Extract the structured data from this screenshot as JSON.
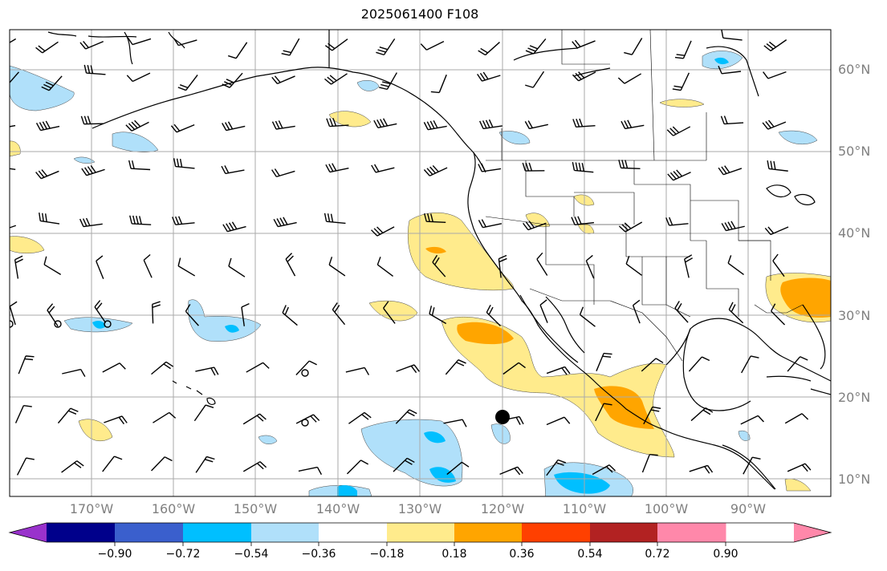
{
  "title": "2025061400 F108",
  "lat_labels": [
    "60°N",
    "50°N",
    "40°N",
    "30°N",
    "20°N",
    "10°N"
  ],
  "lon_labels": [
    "170°W",
    "160°W",
    "150°W",
    "140°W",
    "130°W",
    "120°W",
    "110°W",
    "100°W",
    "90°W"
  ],
  "colorbar": {
    "ticks": [
      "−0.90",
      "−0.72",
      "−0.54",
      "−0.36",
      "−0.18",
      "0.18",
      "0.36",
      "0.54",
      "0.72",
      "0.90"
    ],
    "colors": [
      "#9932cc",
      "#00008b",
      "#3a5fcd",
      "#00bfff",
      "#b0e0fa",
      "#ffffff",
      "#ffeb8c",
      "#ffa500",
      "#ff4000",
      "#b22222",
      "#ff88aa"
    ]
  },
  "colors": {
    "coast": "#000000",
    "grid": "#aaaaaa",
    "barb": "#000000",
    "light_blue": "#b0e0fa",
    "mid_blue": "#00bfff",
    "light_yellow": "#ffeb8c",
    "orange": "#ffa500"
  }
}
